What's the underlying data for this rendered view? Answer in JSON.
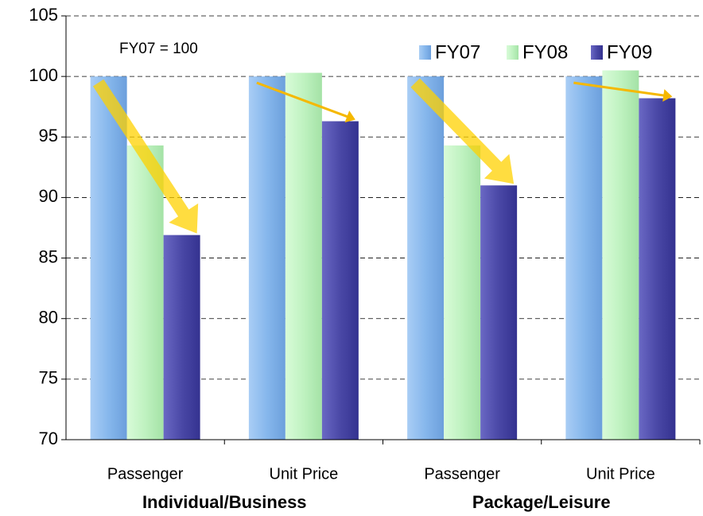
{
  "chart_data": {
    "type": "bar",
    "annotation": "FY07 = 100",
    "categories": [
      "Passenger",
      "Unit Price",
      "Passenger",
      "Unit Price"
    ],
    "groups": [
      {
        "label": "Individual/Business",
        "span": [
          0,
          1
        ]
      },
      {
        "label": "Package/Leisure",
        "span": [
          2,
          3
        ]
      }
    ],
    "series": [
      {
        "name": "FY07",
        "color": "#86b7ec",
        "values": [
          100,
          100,
          100,
          100
        ]
      },
      {
        "name": "FY08",
        "color": "#bff2c0",
        "values": [
          94.3,
          100.3,
          94.3,
          100.5
        ]
      },
      {
        "name": "FY09",
        "color": "#4a48a6",
        "values": [
          86.9,
          96.3,
          91.0,
          98.2
        ]
      }
    ],
    "ylim": [
      70,
      105
    ],
    "yticks": [
      70,
      75,
      80,
      85,
      90,
      95,
      100,
      105
    ],
    "grid": true,
    "legend": "top-right"
  }
}
